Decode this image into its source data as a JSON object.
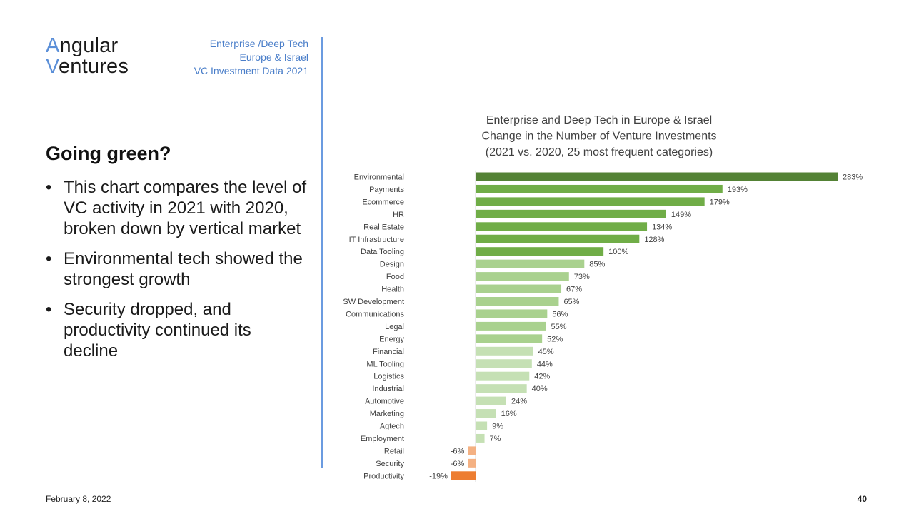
{
  "logo": {
    "line1_cap": "A",
    "line1_rest": "ngular",
    "line2_cap": "V",
    "line2_rest": "entures"
  },
  "header": {
    "line1": "Enterprise /Deep Tech",
    "line2": "Europe & Israel",
    "line3": "VC Investment Data 2021"
  },
  "slide": {
    "title": "Going green?",
    "bullet_symbol": "•",
    "bullets": [
      "This chart compares the level of VC activity in 2021 with 2020, broken down by vertical market",
      "Environmental tech showed the strongest growth",
      "Security dropped, and productivity continued its decline"
    ]
  },
  "footer": {
    "date": "February 8, 2022",
    "page": "40"
  },
  "colors": {
    "accent": "#5b8fd8",
    "divider": "#6b9be0",
    "bar_top": "#548235",
    "bar_strong": "#70ad47",
    "bar_medium": "#a9d18e",
    "bar_light": "#c5e0b4",
    "bar_neg_light": "#f4b183",
    "bar_neg_strong": "#ed7d31"
  },
  "chart_data": {
    "type": "bar",
    "orientation": "horizontal",
    "title_lines": [
      "Enterprise and Deep Tech in Europe & Israel",
      "Change in the Number of Venture Investments",
      "(2021 vs. 2020, 25 most frequent categories)"
    ],
    "categories": [
      "Environmental",
      "Payments",
      "Ecommerce",
      "HR",
      "Real Estate",
      "IT Infrastructure",
      "Data Tooling",
      "Design",
      "Food",
      "Health",
      "SW Development",
      "Communications",
      "Legal",
      "Energy",
      "Financial",
      "ML Tooling",
      "Logistics",
      "Industrial",
      "Automotive",
      "Marketing",
      "Agtech",
      "Employment",
      "Retail",
      "Security",
      "Productivity"
    ],
    "values": [
      283,
      193,
      179,
      149,
      134,
      128,
      100,
      85,
      73,
      67,
      65,
      56,
      55,
      52,
      45,
      44,
      42,
      40,
      24,
      16,
      9,
      7,
      -6,
      -6,
      -19
    ],
    "value_labels": [
      "283%",
      "193%",
      "179%",
      "149%",
      "134%",
      "128%",
      "100%",
      "85%",
      "73%",
      "67%",
      "65%",
      "56%",
      "55%",
      "52%",
      "45%",
      "44%",
      "42%",
      "40%",
      "24%",
      "16%",
      "9%",
      "7%",
      "-6%",
      "-6%",
      "-19%"
    ],
    "color_groups": [
      "bar_top",
      "bar_strong",
      "bar_strong",
      "bar_strong",
      "bar_strong",
      "bar_strong",
      "bar_strong",
      "bar_medium",
      "bar_medium",
      "bar_medium",
      "bar_medium",
      "bar_medium",
      "bar_medium",
      "bar_medium",
      "bar_light",
      "bar_light",
      "bar_light",
      "bar_light",
      "bar_light",
      "bar_light",
      "bar_light",
      "bar_light",
      "bar_neg_light",
      "bar_neg_light",
      "bar_neg_strong"
    ],
    "xlim": [
      -19,
      283
    ],
    "unit": "%",
    "grid": false,
    "legend": "none"
  }
}
